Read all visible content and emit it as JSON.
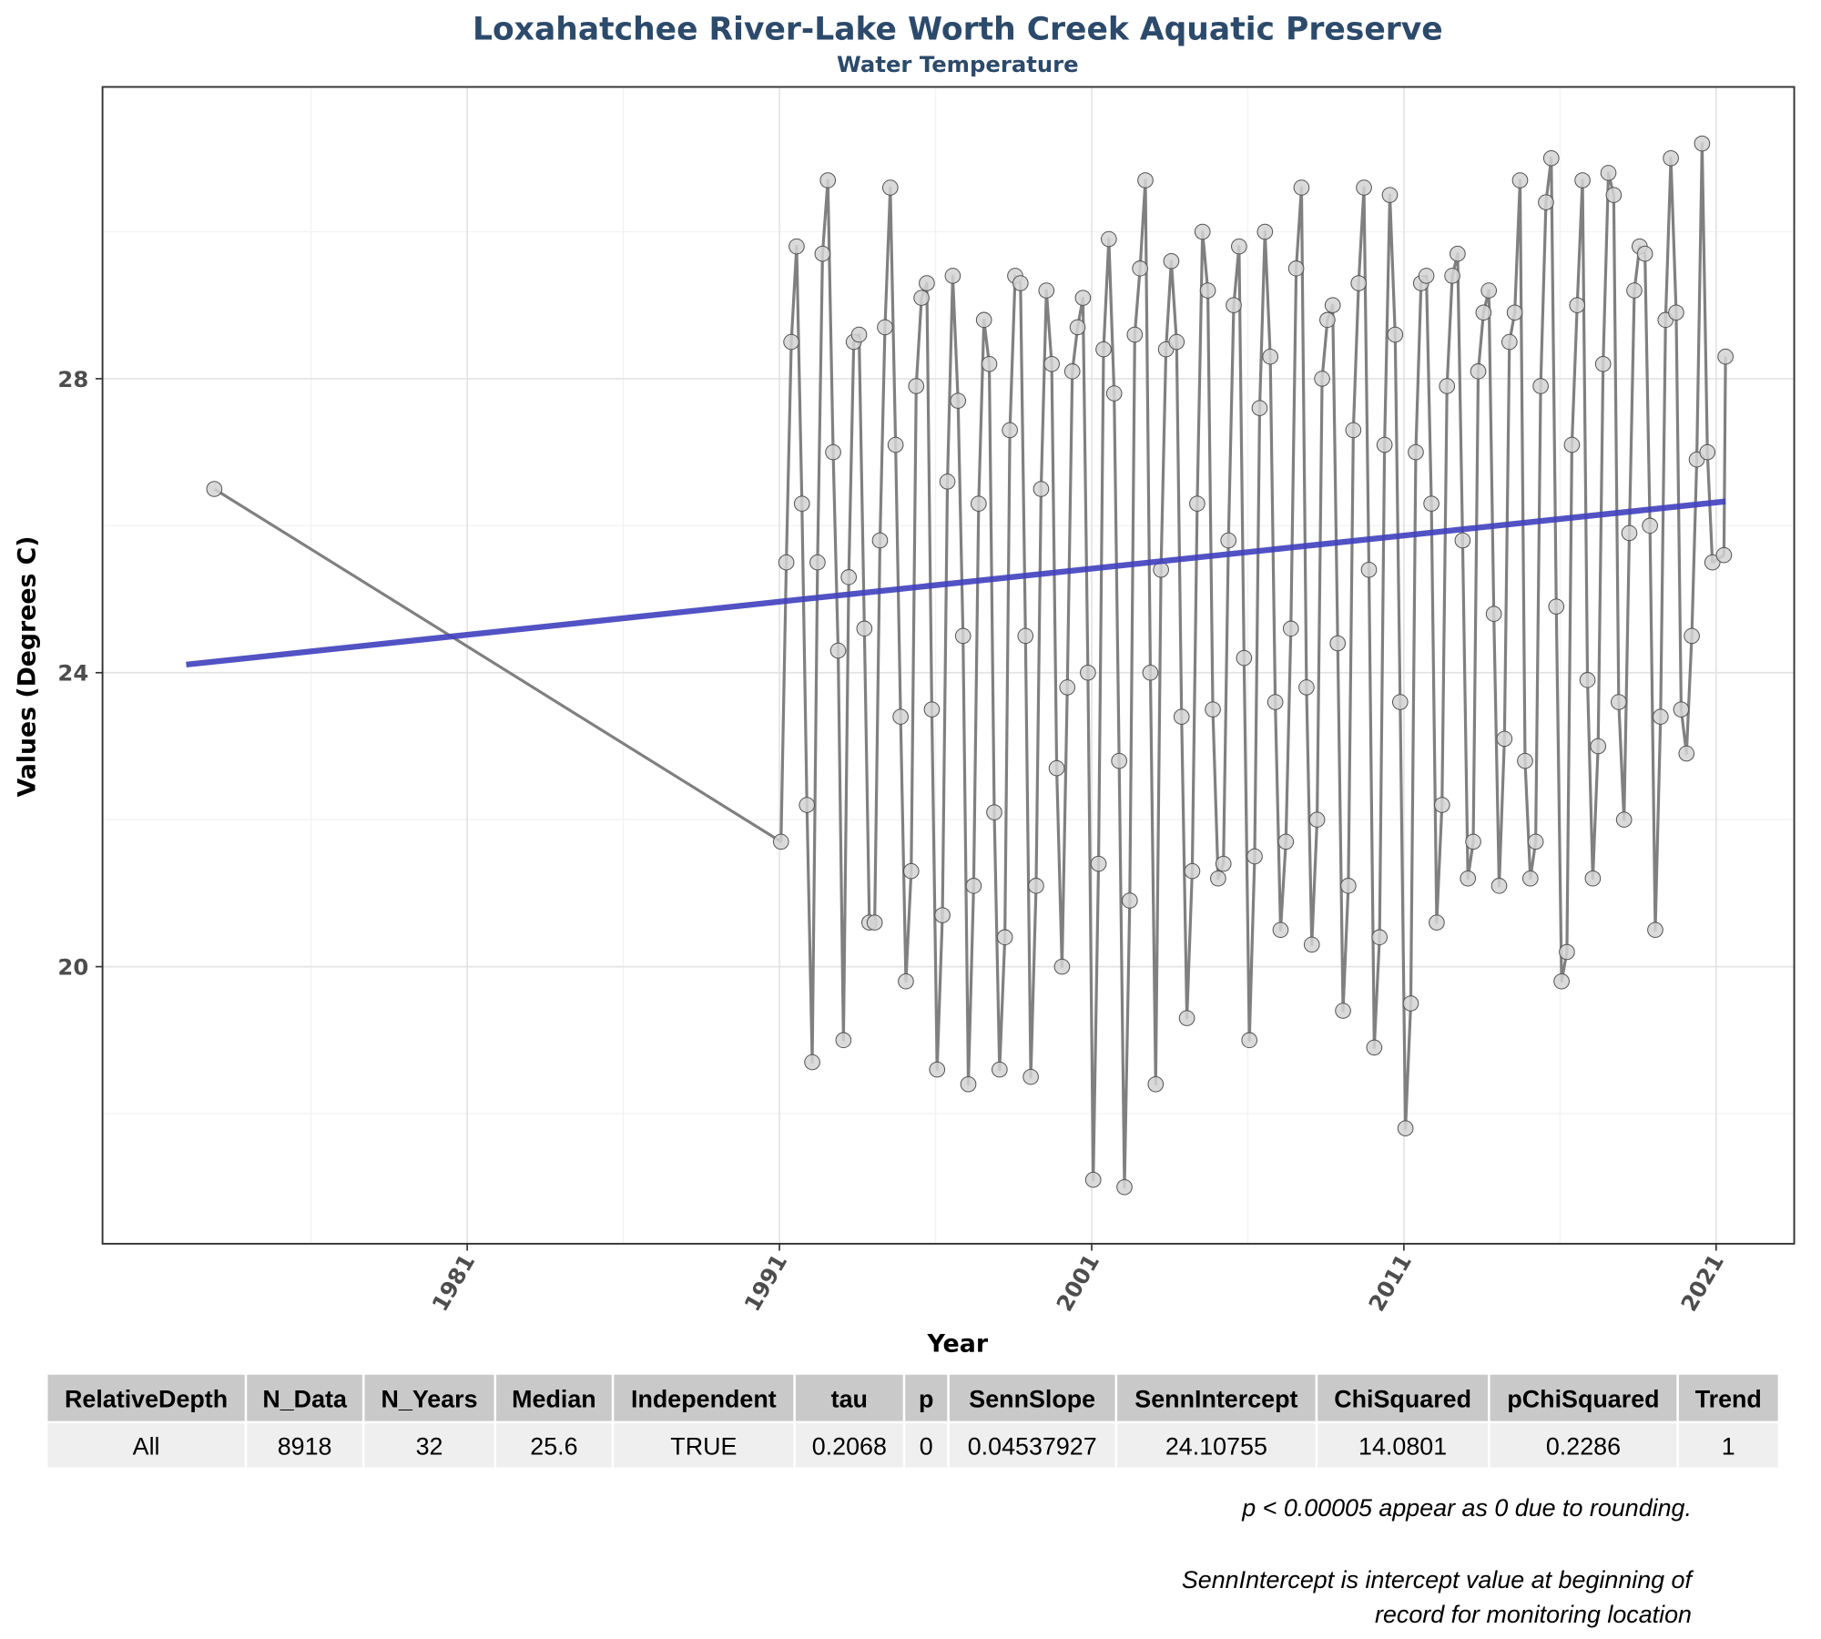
{
  "chart_data": {
    "type": "line",
    "title": "Loxahatchee River-Lake Worth Creek Aquatic Preserve",
    "subtitle": "Water Temperature",
    "x_label": "Year",
    "y_label": "Values (Degrees C)",
    "xlim": [
      1969.32,
      2023.5
    ],
    "ylim": [
      16.23,
      31.97
    ],
    "xticks": [
      1981,
      1991,
      2001,
      2011,
      2021
    ],
    "yticks": [
      20,
      24,
      28
    ],
    "x_minor_grid": [
      1976,
      1986,
      1996,
      2006,
      2016
    ],
    "y_minor_grid": [
      18,
      22,
      26,
      30
    ],
    "grid": true,
    "series": [
      {
        "color": "#808080",
        "marker_color": "#d3d3d3",
        "x": [
          1972.9,
          1991.05,
          1991.22,
          1991.38,
          1991.55,
          1991.72,
          1991.88,
          1992.05,
          1992.22,
          1992.38,
          1992.55,
          1992.72,
          1992.88,
          1993.05,
          1993.22,
          1993.38,
          1993.55,
          1993.72,
          1993.88,
          1994.05,
          1994.22,
          1994.38,
          1994.55,
          1994.72,
          1994.88,
          1995.05,
          1995.22,
          1995.38,
          1995.55,
          1995.72,
          1995.88,
          1996.05,
          1996.22,
          1996.38,
          1996.55,
          1996.72,
          1996.88,
          1997.05,
          1997.22,
          1997.38,
          1997.55,
          1997.72,
          1997.88,
          1998.05,
          1998.22,
          1998.38,
          1998.55,
          1998.72,
          1998.88,
          1999.05,
          1999.22,
          1999.38,
          1999.55,
          1999.72,
          1999.88,
          2000.05,
          2000.22,
          2000.38,
          2000.55,
          2000.72,
          2000.88,
          2001.05,
          2001.22,
          2001.38,
          2001.55,
          2001.72,
          2001.88,
          2002.05,
          2002.22,
          2002.38,
          2002.55,
          2002.72,
          2002.88,
          2003.05,
          2003.22,
          2003.38,
          2003.55,
          2003.72,
          2003.88,
          2004.05,
          2004.22,
          2004.38,
          2004.55,
          2004.72,
          2004.88,
          2005.05,
          2005.22,
          2005.38,
          2005.55,
          2005.72,
          2005.88,
          2006.05,
          2006.22,
          2006.38,
          2006.55,
          2006.72,
          2006.88,
          2007.05,
          2007.22,
          2007.38,
          2007.55,
          2007.72,
          2007.88,
          2008.05,
          2008.22,
          2008.38,
          2008.55,
          2008.72,
          2008.88,
          2009.05,
          2009.22,
          2009.38,
          2009.55,
          2009.72,
          2009.88,
          2010.05,
          2010.22,
          2010.38,
          2010.55,
          2010.72,
          2010.88,
          2011.05,
          2011.22,
          2011.38,
          2011.55,
          2011.72,
          2011.88,
          2012.05,
          2012.22,
          2012.38,
          2012.55,
          2012.72,
          2012.88,
          2013.05,
          2013.22,
          2013.38,
          2013.55,
          2013.72,
          2013.88,
          2014.05,
          2014.22,
          2014.38,
          2014.55,
          2014.72,
          2014.88,
          2015.05,
          2015.22,
          2015.38,
          2015.55,
          2015.72,
          2015.88,
          2016.05,
          2016.22,
          2016.38,
          2016.55,
          2016.72,
          2016.88,
          2017.05,
          2017.22,
          2017.38,
          2017.55,
          2017.72,
          2017.88,
          2018.05,
          2018.22,
          2018.38,
          2018.55,
          2018.72,
          2018.88,
          2019.05,
          2019.22,
          2019.38,
          2019.55,
          2019.72,
          2019.88,
          2020.05,
          2020.22,
          2020.38,
          2020.55,
          2020.72,
          2020.88,
          2021.25,
          2021.3
        ],
        "values": [
          26.5,
          21.7,
          25.5,
          28.5,
          29.8,
          26.3,
          22.2,
          18.7,
          25.5,
          29.7,
          30.7,
          27.0,
          24.3,
          19.0,
          25.3,
          28.5,
          28.6,
          24.6,
          20.6,
          20.6,
          25.8,
          28.7,
          30.6,
          27.1,
          23.4,
          19.8,
          21.3,
          27.9,
          29.1,
          29.3,
          23.5,
          18.6,
          20.7,
          26.6,
          29.4,
          27.7,
          24.5,
          18.4,
          21.1,
          26.3,
          28.8,
          28.2,
          22.1,
          18.6,
          20.4,
          27.3,
          29.4,
          29.3,
          24.5,
          18.5,
          21.1,
          26.5,
          29.2,
          28.2,
          22.7,
          20.0,
          23.8,
          28.1,
          28.7,
          29.1,
          24.0,
          17.1,
          21.4,
          28.4,
          29.9,
          27.8,
          22.8,
          17.0,
          20.9,
          28.6,
          29.5,
          30.7,
          24.0,
          18.4,
          25.4,
          28.4,
          29.6,
          28.5,
          23.4,
          19.3,
          21.3,
          26.3,
          30.0,
          29.2,
          23.5,
          21.2,
          21.4,
          25.8,
          29.0,
          29.8,
          24.2,
          19.0,
          21.5,
          27.6,
          30.0,
          28.3,
          23.6,
          20.5,
          21.7,
          24.6,
          29.5,
          30.6,
          23.8,
          20.3,
          22.0,
          28.0,
          28.8,
          29.0,
          24.4,
          19.4,
          21.1,
          27.3,
          29.3,
          30.6,
          25.4,
          18.9,
          20.4,
          27.1,
          30.5,
          28.6,
          23.6,
          17.8,
          19.5,
          27.0,
          29.3,
          29.4,
          26.3,
          20.6,
          22.2,
          27.9,
          29.4,
          29.7,
          25.8,
          21.2,
          21.7,
          28.1,
          28.9,
          29.2,
          24.8,
          21.1,
          23.1,
          28.5,
          28.9,
          30.7,
          22.8,
          21.2,
          21.7,
          27.9,
          30.4,
          31.0,
          24.9,
          19.8,
          20.2,
          27.1,
          29.0,
          30.7,
          23.9,
          21.2,
          23.0,
          28.2,
          30.8,
          30.5,
          23.6,
          22.0,
          25.9,
          29.2,
          29.8,
          29.7,
          26.0,
          20.5,
          23.4,
          28.8,
          31.0,
          28.9,
          23.5,
          22.9,
          24.5,
          26.9,
          31.2,
          27.0,
          25.5,
          25.6,
          28.3
        ]
      }
    ],
    "trend": {
      "color": "#3f3fbf",
      "x": [
        1972.0,
        2021.3
      ],
      "values": [
        24.11,
        26.33
      ]
    }
  },
  "table": {
    "headers": [
      "RelativeDepth",
      "N_Data",
      "N_Years",
      "Median",
      "Independent",
      "tau",
      "p",
      "SennSlope",
      "SennIntercept",
      "ChiSquared",
      "pChiSquared",
      "Trend"
    ],
    "rows": [
      [
        "All",
        "8918",
        "32",
        "25.6",
        "TRUE",
        "0.2068",
        "0",
        "0.04537927",
        "24.10755",
        "14.0801",
        "0.2286",
        "1"
      ]
    ]
  },
  "notes": [
    [
      "p < 0.00005 appear as 0 due to rounding."
    ],
    [
      "SennIntercept is intercept value at beginning of",
      "record for monitoring location"
    ]
  ]
}
